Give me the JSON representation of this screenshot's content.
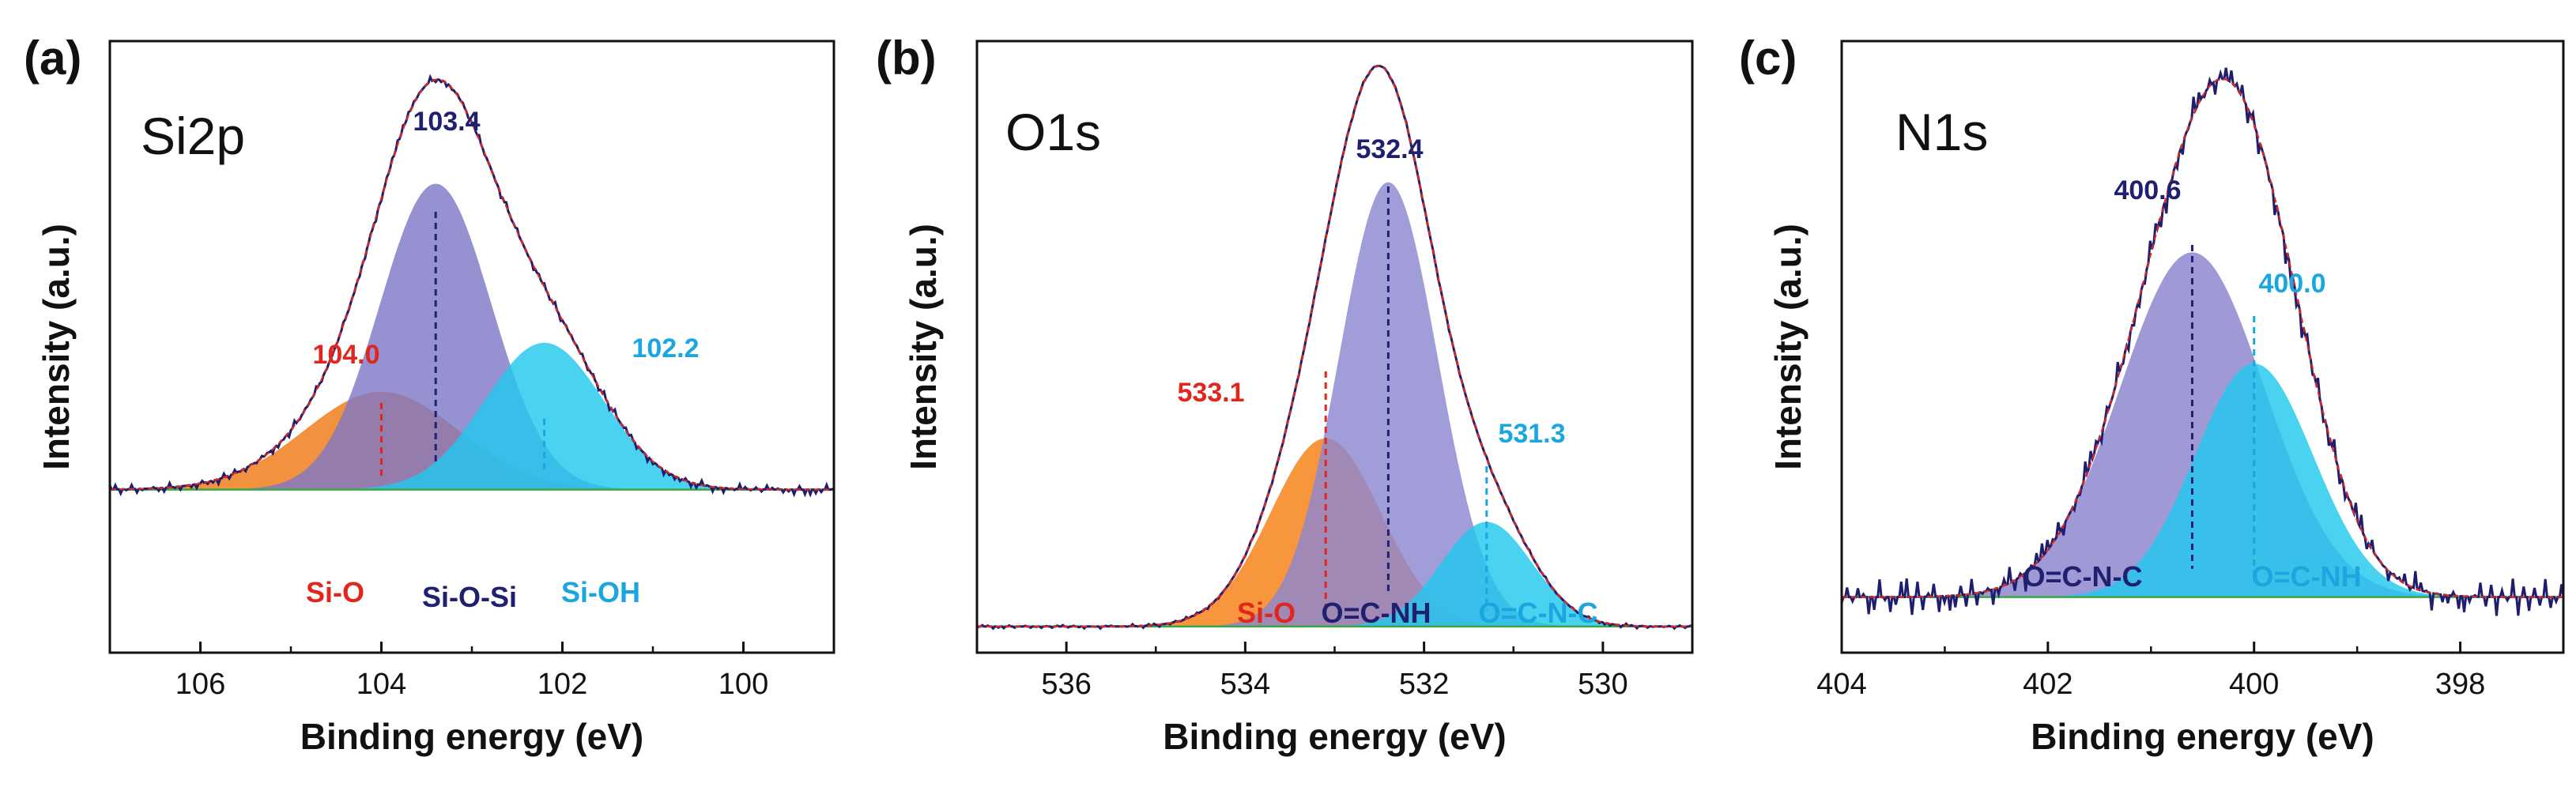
{
  "chart_data": [
    {
      "type": "line",
      "panel": "(a)",
      "title": "Si2p",
      "xlabel": "Binding energy (eV)",
      "ylabel": "Intensity (a.u.)",
      "xlim": [
        107,
        99
      ],
      "ylim": [
        -0.4,
        1.1
      ],
      "xticks": [
        "106",
        "104",
        "102",
        "100"
      ],
      "grid": false,
      "baseline": 0.0,
      "envelope_peak": 103.4,
      "noise_amp": 0.012,
      "peaks": [
        {
          "name": "Si-O",
          "label": "104.0",
          "center": 104.0,
          "height": 0.24,
          "fwhm": 2.0,
          "color": "#ef7a14",
          "label_color": "#e0261d"
        },
        {
          "name": "Si-O-Si",
          "label": "103.4",
          "center": 103.4,
          "height": 0.75,
          "fwhm": 1.45,
          "color": "#7f79c6",
          "label_color": "#1f2070"
        },
        {
          "name": "Si-OH",
          "label": "102.2",
          "center": 102.2,
          "height": 0.36,
          "fwhm": 1.55,
          "color": "#22c8ee",
          "label_color": "#1aa6df"
        }
      ]
    },
    {
      "type": "line",
      "panel": "(b)",
      "title": "O1s",
      "xlabel": "Binding energy (eV)",
      "ylabel": "Intensity (a.u.)",
      "xlim": [
        537,
        529
      ],
      "ylim": [
        -0.05,
        1.12
      ],
      "xticks": [
        "536",
        "534",
        "532",
        "530"
      ],
      "grid": false,
      "baseline": 0.0,
      "envelope_peak": 532.4,
      "noise_amp": 0.004,
      "peaks": [
        {
          "name": "Si-O",
          "label": "533.1",
          "center": 533.1,
          "height": 0.36,
          "fwhm": 1.45,
          "color": "#f57f12",
          "label_color": "#e0261d"
        },
        {
          "name": "O=C-NH",
          "label": "532.4",
          "center": 532.4,
          "height": 0.85,
          "fwhm": 1.3,
          "color": "#8c87cf",
          "label_color": "#1f2070"
        },
        {
          "name": "O=C-N-C",
          "label": "531.3",
          "center": 531.3,
          "height": 0.2,
          "fwhm": 1.2,
          "color": "#22c8ee",
          "label_color": "#1aa6df"
        }
      ]
    },
    {
      "type": "line",
      "panel": "(c)",
      "title": "N1s",
      "xlabel": "Binding energy (eV)",
      "ylabel": "Intensity (a.u.)",
      "xlim": [
        404,
        397
      ],
      "ylim": [
        -0.1,
        1.0
      ],
      "xticks": [
        "404",
        "402",
        "400",
        "398"
      ],
      "grid": false,
      "baseline": 0.0,
      "envelope_peak": 400.3,
      "noise_amp": 0.035,
      "peaks": [
        {
          "name": "O=C-N-C",
          "label": "400.6",
          "center": 400.6,
          "height": 0.62,
          "fwhm": 1.65,
          "color": "#8a84cc",
          "label_color": "#1f2070"
        },
        {
          "name": "O=C-NH",
          "label": "400.0",
          "center": 400.0,
          "height": 0.42,
          "fwhm": 1.35,
          "color": "#22c8ee",
          "label_color": "#1aa6df"
        }
      ]
    }
  ]
}
